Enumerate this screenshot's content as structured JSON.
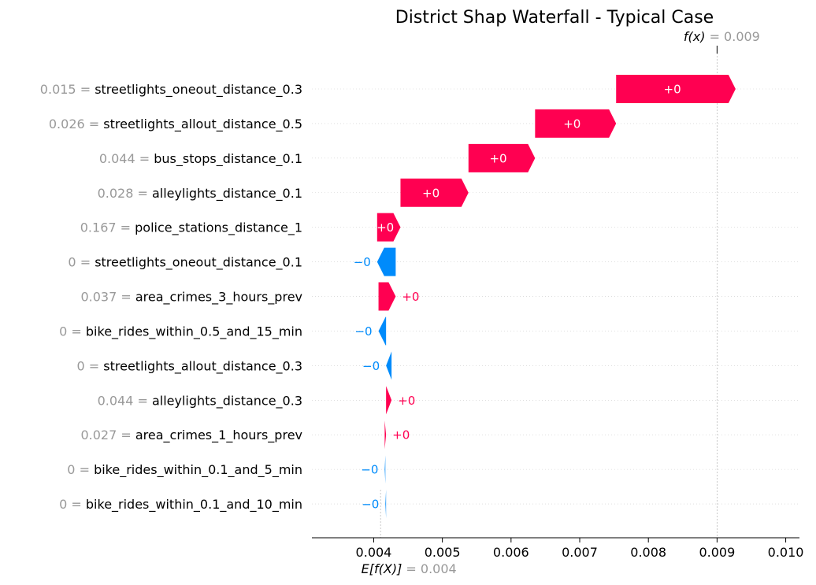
{
  "chart_data": {
    "type": "waterfall",
    "title": "District Shap Waterfall - Typical Case",
    "fx_label": "f(x)",
    "fx_value": 0.009,
    "fx_value_label": "= 0.009",
    "ex_label": "E[f(X)]",
    "ex_value": 0.0041,
    "ex_value_label": "= 0.004",
    "xlim": [
      0.0031,
      0.0102
    ],
    "xticks": [
      0.004,
      0.005,
      0.006,
      0.007,
      0.008,
      0.009,
      0.01
    ],
    "xtick_labels": [
      "0.004",
      "0.005",
      "0.006",
      "0.007",
      "0.008",
      "0.009",
      "0.010"
    ],
    "features": [
      {
        "feature_value": "0.015",
        "name": "streetlights_oneout_distance_0.3",
        "start": 0.00753,
        "end": 0.00927,
        "label": "+0"
      },
      {
        "feature_value": "0.026",
        "name": "streetlights_allout_distance_0.5",
        "start": 0.00635,
        "end": 0.00753,
        "label": "+0"
      },
      {
        "feature_value": "0.044",
        "name": "bus_stops_distance_0.1",
        "start": 0.00538,
        "end": 0.00635,
        "label": "+0"
      },
      {
        "feature_value": "0.028",
        "name": "alleylights_distance_0.1",
        "start": 0.00439,
        "end": 0.00538,
        "label": "+0"
      },
      {
        "feature_value": "0.167",
        "name": "police_stations_distance_1",
        "start": 0.00405,
        "end": 0.00439,
        "label": "+0"
      },
      {
        "feature_value": "0",
        "name": "streetlights_oneout_distance_0.1",
        "start": 0.00432,
        "end": 0.00405,
        "label": "−0"
      },
      {
        "feature_value": "0.037",
        "name": "area_crimes_3_hours_prev",
        "start": 0.00407,
        "end": 0.00432,
        "label": "+0"
      },
      {
        "feature_value": "0",
        "name": "bike_rides_within_0.5_and_15_min",
        "start": 0.00418,
        "end": 0.00407,
        "label": "−0"
      },
      {
        "feature_value": "0",
        "name": "streetlights_allout_distance_0.3",
        "start": 0.00426,
        "end": 0.00418,
        "label": "−0"
      },
      {
        "feature_value": "0.044",
        "name": "alleylights_distance_0.3",
        "start": 0.00418,
        "end": 0.00426,
        "label": "+0"
      },
      {
        "feature_value": "0.027",
        "name": "area_crimes_1_hours_prev",
        "start": 0.00416,
        "end": 0.00418,
        "label": "+0"
      },
      {
        "feature_value": "0",
        "name": "bike_rides_within_0.1_and_5_min",
        "start": 0.00417,
        "end": 0.00416,
        "label": "−0"
      },
      {
        "feature_value": "0",
        "name": "bike_rides_within_0.1_and_10_min",
        "start": 0.00418,
        "end": 0.00417,
        "label": "−0"
      }
    ],
    "colors": {
      "positive": "#ff0051",
      "negative": "#008bfb",
      "muted": "#999999",
      "axis": "#000000"
    }
  }
}
